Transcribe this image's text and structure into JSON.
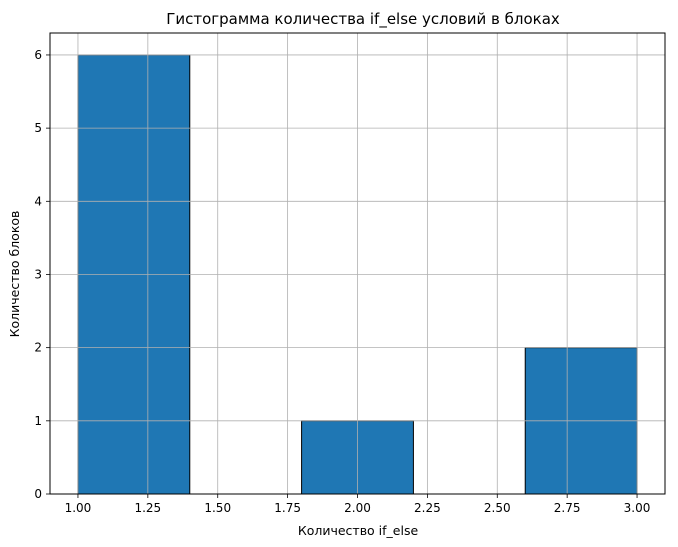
{
  "chart_data": {
    "type": "bar",
    "title": "Гистограмма количества if_else условий в блоках",
    "xlabel": "Количество if_else",
    "ylabel": "Количество блоков",
    "xlim": [
      0.9,
      3.1
    ],
    "ylim": [
      0,
      6.3
    ],
    "x_ticks": [
      1.0,
      1.25,
      1.5,
      1.75,
      2.0,
      2.25,
      2.5,
      2.75,
      3.0
    ],
    "x_tick_labels": [
      "1.00",
      "1.25",
      "1.50",
      "1.75",
      "2.00",
      "2.25",
      "2.50",
      "2.75",
      "3.00"
    ],
    "y_ticks": [
      0,
      1,
      2,
      3,
      4,
      5,
      6
    ],
    "y_tick_labels": [
      "0",
      "1",
      "2",
      "3",
      "4",
      "5",
      "6"
    ],
    "bins": [
      {
        "start": 1.0,
        "end": 1.4,
        "count": 6
      },
      {
        "start": 1.4,
        "end": 1.8,
        "count": 0
      },
      {
        "start": 1.8,
        "end": 2.2,
        "count": 1
      },
      {
        "start": 2.2,
        "end": 2.6,
        "count": 0
      },
      {
        "start": 2.6,
        "end": 3.0,
        "count": 2
      }
    ],
    "grid": true,
    "bar_color": "#1f77b4",
    "edge_color": "#000000",
    "grid_color": "#b0b0b0"
  }
}
